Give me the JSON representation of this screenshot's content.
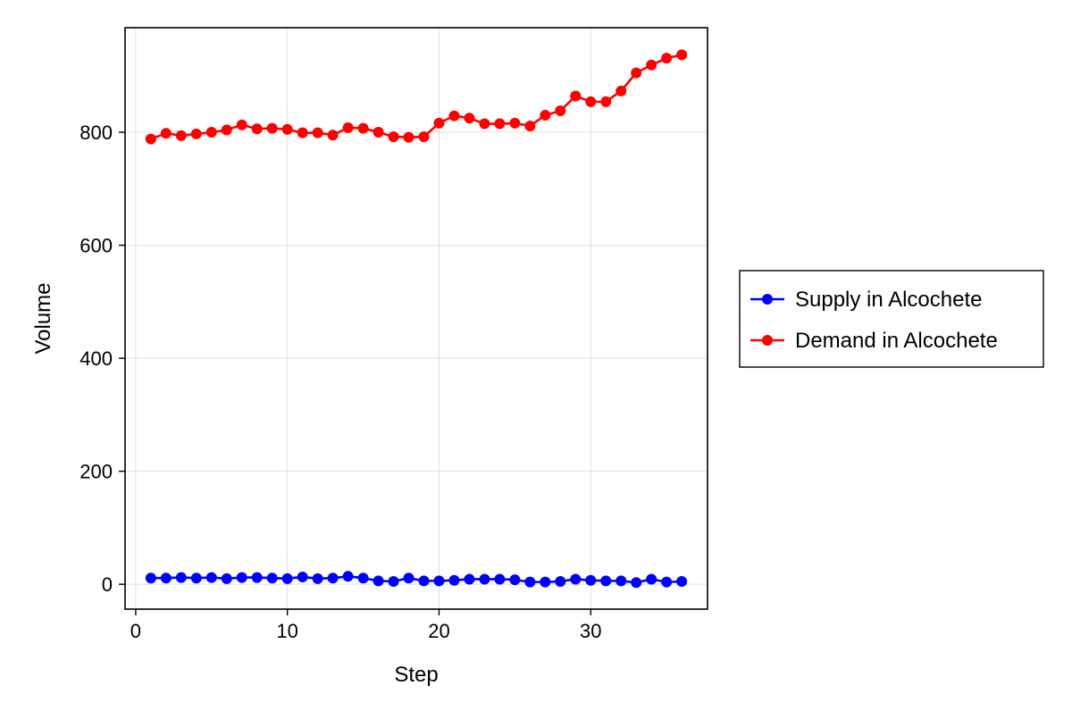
{
  "chart_data": {
    "type": "line",
    "title": "",
    "xlabel": "Step",
    "ylabel": "Volume",
    "xlim": [
      -0.7,
      37.7
    ],
    "ylim": [
      -44,
      985
    ],
    "xticks": [
      0,
      10,
      20,
      30
    ],
    "yticks": [
      0,
      200,
      400,
      600,
      800
    ],
    "grid": true,
    "legend_position": "right",
    "x": [
      1,
      2,
      3,
      4,
      5,
      6,
      7,
      8,
      9,
      10,
      11,
      12,
      13,
      14,
      15,
      16,
      17,
      18,
      19,
      20,
      21,
      22,
      23,
      24,
      25,
      26,
      27,
      28,
      29,
      30,
      31,
      32,
      33,
      34,
      35,
      36
    ],
    "series": [
      {
        "name": "Supply in Alcochete",
        "color": "#0000ff",
        "marker": "circle",
        "values": [
          11,
          11,
          12,
          11,
          12,
          10,
          12,
          12,
          11,
          10,
          13,
          10,
          11,
          14,
          11,
          6,
          5,
          11,
          6,
          6,
          7,
          9,
          9,
          9,
          8,
          4,
          4,
          5,
          9,
          7,
          6,
          6,
          3,
          9,
          4,
          5
        ]
      },
      {
        "name": "Demand in Alcochete",
        "color": "#ff0000",
        "marker": "circle",
        "values": [
          788,
          798,
          794,
          797,
          800,
          804,
          813,
          806,
          807,
          805,
          799,
          799,
          795,
          808,
          807,
          800,
          792,
          791,
          792,
          816,
          829,
          825,
          815,
          815,
          816,
          811,
          830,
          838,
          864,
          854,
          854,
          873,
          905,
          919,
          931,
          937
        ]
      }
    ]
  }
}
